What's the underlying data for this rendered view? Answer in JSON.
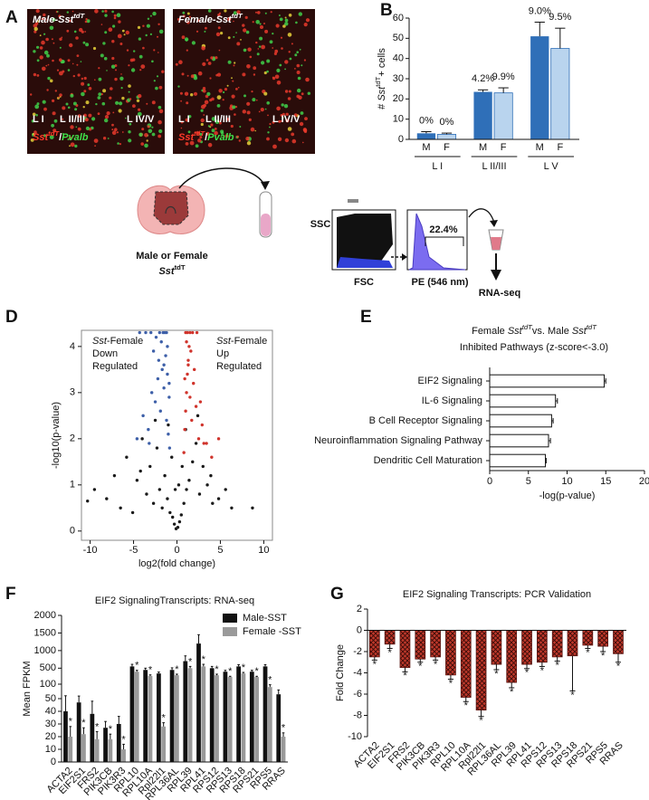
{
  "panel_a": {
    "letter": "A",
    "images": [
      {
        "title": [
          {
            "text": "Male-Sst",
            "style": "italic"
          },
          {
            "text": "tdT",
            "style": "italic-sup"
          }
        ],
        "layers": [
          "L I",
          "L II/III",
          "L IV/V"
        ],
        "stain": [
          {
            "text": "Sst",
            "style": "italic",
            "color": "#ff3a2a"
          },
          {
            "text": "tdT",
            "style": "italic-sup",
            "color": "#ff3a2a"
          },
          {
            "text": "/",
            "color": "#ffffff"
          },
          {
            "text": "Pvalb",
            "style": "italic",
            "color": "#3fe14a"
          }
        ]
      },
      {
        "title": [
          {
            "text": "Female-Sst",
            "style": "italic"
          },
          {
            "text": "tdT",
            "style": "italic-sup"
          }
        ],
        "layers": [
          "L I",
          "L II/III",
          "L IV/V"
        ],
        "stain": [
          {
            "text": "Sst",
            "style": "italic",
            "color": "#ff3a2a"
          },
          {
            "text": "tdT",
            "style": "italic-sup",
            "color": "#ff3a2a"
          },
          {
            "text": "/",
            "color": "#ffffff"
          },
          {
            "text": "Pvalb",
            "style": "italic",
            "color": "#3fe14a"
          }
        ]
      }
    ]
  },
  "panel_c": {
    "letter": "C",
    "animal": "Male or Female",
    "genotype": [
      {
        "text": "Sst",
        "style": "italic"
      },
      {
        "text": "tdT",
        "style": "sup"
      }
    ],
    "y_axis": "SSC",
    "x_axis": "FSC",
    "gate": "22.4%",
    "channel": "PE (546 nm)",
    "output": "RNA-seq"
  },
  "chart_data": [
    {
      "letter": "B",
      "type": "bar",
      "ylabel": [
        {
          "text": "# "
        },
        {
          "text": "Sst",
          "style": "italic"
        },
        {
          "text": "tdT",
          "style": "sup"
        },
        {
          "text": "+ cells"
        }
      ],
      "categories": [
        "L I",
        "L II/III",
        "L V"
      ],
      "series": [
        {
          "name": "M",
          "color": "#2f6fb8",
          "values": [
            3,
            23.5,
            51
          ],
          "errors": [
            0.8,
            1,
            7
          ],
          "annotations": [
            "0%",
            "4.2%",
            "9.0%"
          ]
        },
        {
          "name": "F",
          "color": "#b9d4ee",
          "values": [
            2.5,
            23,
            45
          ],
          "errors": [
            0.6,
            2.5,
            10
          ],
          "annotations": [
            "0%",
            "9.9%",
            "9.5%"
          ]
        }
      ],
      "ylim": [
        0,
        60
      ],
      "yticks": [
        0,
        10,
        20,
        30,
        40,
        50,
        60
      ],
      "legend": "under-bars"
    },
    {
      "letter": "D",
      "type": "scatter",
      "xlabel": "log2(fold change)",
      "ylabel": "-log10(p-value)",
      "series": [
        {
          "color": "#1a1a1a",
          "x": [
            -9.5,
            -8.1,
            -7.2,
            -6.5,
            -5.8,
            -5.1,
            -4.6,
            -4.0,
            -3.5,
            -3.1,
            -2.7,
            -2.3,
            -2.0,
            -1.7,
            -1.4,
            -1.1,
            -0.8,
            -0.5,
            -0.3,
            -0.1,
            0.1,
            0.3,
            0.5,
            0.8,
            1.1,
            1.4,
            1.8,
            2.2,
            2.6,
            3.0,
            3.5,
            4.1,
            4.8,
            5.6,
            6.3,
            -0.6,
            0.6,
            -0.2,
            0.2,
            -1.0,
            1.0,
            -2.5,
            2.4,
            -4.2,
            3.9,
            -10.3,
            8.7
          ],
          "y": [
            0.9,
            0.7,
            1.2,
            0.5,
            1.6,
            0.4,
            1.1,
            2.0,
            0.8,
            1.4,
            0.6,
            1.8,
            0.9,
            0.5,
            1.2,
            0.7,
            0.4,
            0.3,
            0.15,
            0.05,
            0.08,
            0.2,
            0.35,
            0.6,
            0.9,
            1.1,
            1.5,
            1.9,
            0.8,
            1.4,
            1.0,
            0.6,
            0.7,
            0.9,
            0.5,
            1.6,
            1.4,
            0.9,
            1.0,
            2.3,
            2.2,
            2.4,
            2.5,
            1.3,
            1.2,
            0.65,
            0.5
          ]
        },
        {
          "color": "#3d5fa8",
          "x": [
            -4.6,
            -3.9,
            -3.3,
            -2.9,
            -2.5,
            -2.2,
            -1.9,
            -1.7,
            -1.5,
            -1.3,
            -1.2,
            -1.1,
            -1.0,
            -0.9,
            -0.85,
            -2.0,
            -1.6,
            -1.4,
            -1.2,
            -3.0,
            -2.4,
            -1.8,
            -4.3,
            -3.6,
            -2.7,
            -2.1,
            -1.5,
            -1.1,
            -0.9,
            -3.2
          ],
          "y": [
            2.0,
            2.5,
            2.2,
            3.0,
            2.8,
            3.3,
            2.6,
            3.5,
            3.1,
            3.8,
            2.4,
            3.4,
            2.1,
            2.9,
            1.8,
            4.3,
            4.3,
            4.3,
            4.3,
            4.3,
            4.2,
            4.1,
            4.3,
            4.3,
            3.9,
            3.7,
            3.6,
            4.0,
            3.2,
            1.9
          ]
        },
        {
          "color": "#d0342c",
          "x": [
            0.8,
            0.9,
            1.0,
            1.1,
            1.2,
            1.3,
            1.5,
            1.7,
            1.9,
            2.2,
            2.5,
            2.9,
            3.4,
            4.0,
            4.8,
            1.0,
            1.2,
            1.5,
            1.8,
            2.3,
            1.1,
            1.4,
            1.6,
            2.0,
            0.9,
            2.7,
            3.1,
            1.3
          ],
          "y": [
            1.7,
            2.2,
            2.6,
            3.0,
            3.4,
            3.7,
            2.9,
            2.4,
            3.2,
            2.7,
            2.0,
            2.3,
            1.9,
            1.6,
            2.0,
            4.3,
            4.3,
            4.3,
            4.3,
            4.3,
            4.1,
            4.0,
            3.9,
            3.5,
            3.3,
            2.8,
            1.9,
            3.6
          ]
        }
      ],
      "annotations": [
        {
          "color": "#3d5fa8",
          "lines": [
            [
              {
                "text": "Sst",
                "style": "italic"
              },
              {
                "text": "-Female"
              }
            ],
            [
              {
                "text": "Down"
              }
            ],
            [
              {
                "text": "Regulated"
              }
            ]
          ]
        },
        {
          "color": "#c9302c",
          "lines": [
            [
              {
                "text": "Sst",
                "style": "italic"
              },
              {
                "text": "-Female"
              }
            ],
            [
              {
                "text": "Up"
              }
            ],
            [
              {
                "text": "Regulated"
              }
            ]
          ]
        }
      ],
      "xlim": [
        -11,
        11
      ],
      "xticks": [
        -10,
        -5,
        0,
        5,
        10
      ],
      "ylim": [
        -0.2,
        4.35
      ],
      "yticks": [
        0,
        1,
        2,
        3,
        4
      ]
    },
    {
      "letter": "E",
      "type": "barh",
      "title": [
        [
          {
            "text": "Female "
          },
          {
            "text": "Sst",
            "style": "italic"
          },
          {
            "text": "tdT",
            "style": "italic-sup"
          },
          {
            "text": "vs. Male "
          },
          {
            "text": "Sst",
            "style": "italic"
          },
          {
            "text": "tdT",
            "style": "italic-sup"
          }
        ],
        [
          {
            "text": "Inhibited Pathways (z-score<-3.0)"
          }
        ]
      ],
      "xlabel": "-log(p-value)",
      "categories": [
        "EIF2 Signaling",
        "IL-6 Signaling",
        "B Cell Receptor Signaling",
        "Neuroinflammation Signaling Pathway",
        "Dendritic Cell Maturation"
      ],
      "values": [
        14.8,
        8.5,
        8.0,
        7.6,
        7.2
      ],
      "errors": [
        0.2,
        0.25,
        0.2,
        0.25,
        0.1
      ],
      "color": "#ffffff",
      "label_colors": [
        "#c0392b",
        "#222222",
        "#222222",
        "#222222",
        "#222222"
      ],
      "xlim": [
        0,
        20
      ],
      "xticks": [
        0,
        5,
        10,
        15,
        20
      ]
    },
    {
      "letter": "F",
      "type": "bar",
      "title": "EIF2 SignalingTranscripts: RNA-seq",
      "ylabel": "Mean FPKM",
      "categories": [
        "ACTA2",
        "EIF2S1",
        "FRS2",
        "PIK3CB",
        "PIK3R3",
        "RPL10",
        "RPL10A",
        "Rpl22l1",
        "RPL36AL",
        "RPL39",
        "RPL41",
        "RPS12",
        "RPS13",
        "RPS18",
        "RPS21",
        "RPS5",
        "RRAS"
      ],
      "series": [
        {
          "name": "Male-SST",
          "color": "#111111",
          "values": [
            40,
            47,
            38,
            27,
            30,
            550,
            450,
            350,
            450,
            700,
            1200,
            500,
            400,
            550,
            400,
            550,
            65
          ],
          "errors": [
            20,
            12,
            10,
            5,
            6,
            60,
            50,
            40,
            60,
            150,
            250,
            50,
            40,
            50,
            40,
            50,
            15
          ]
        },
        {
          "name": "Female -SST",
          "color": "#9a9a9a",
          "values": [
            20,
            22,
            18,
            18,
            10,
            400,
            280,
            28,
            300,
            500,
            550,
            300,
            250,
            350,
            250,
            90,
            20
          ],
          "errors": [
            8,
            5,
            6,
            4,
            4,
            40,
            30,
            3,
            30,
            50,
            60,
            30,
            20,
            30,
            20,
            8,
            3
          ],
          "annotations": [
            "*",
            "*",
            "*",
            "*",
            "*",
            "*",
            "*",
            "*",
            "*",
            "*",
            "*",
            "*",
            "*",
            "*",
            "*",
            "*",
            "*"
          ]
        }
      ],
      "y_segments": [
        [
          0,
          50
        ],
        [
          50,
          100
        ],
        [
          200,
          2000
        ]
      ],
      "ylim": [
        0,
        2000
      ],
      "yticks": [
        0,
        10,
        20,
        30,
        40,
        50,
        100,
        500,
        1000,
        1500,
        2000
      ],
      "legend": "upper-right"
    },
    {
      "letter": "G",
      "type": "bar",
      "title": "EIF2 Signaling Transcripts: PCR Validation",
      "ylabel": "Fold Change",
      "categories": [
        "ACTA2",
        "EIF2S1",
        "FRS2",
        "PIK3CB",
        "PIK3R3",
        "RPL10",
        "RPL10A",
        "Rpl22l1",
        "RPL36AL",
        "RPL39",
        "RPL41",
        "RPS12",
        "RPS13",
        "RPS18",
        "RPS21",
        "RPS5",
        "RRAS"
      ],
      "series": [
        {
          "color": "#c0392b",
          "pattern": "crosshatch",
          "values": [
            -2.5,
            -1.3,
            -3.5,
            -2.7,
            -2.5,
            -4.2,
            -6.3,
            -7.5,
            -3.2,
            -4.9,
            -3.2,
            -3.0,
            -2.5,
            -2.4,
            -1.4,
            -1.5,
            -2.2
          ],
          "errors": [
            0.3,
            0.4,
            0.4,
            0.3,
            0.3,
            0.4,
            0.4,
            0.6,
            0.5,
            0.5,
            0.4,
            0.4,
            0.4,
            3.3,
            0.3,
            0.5,
            0.8
          ],
          "annotations": [
            "*",
            "*",
            "*",
            "*",
            "*",
            "*",
            "*",
            "*",
            "*",
            "*",
            "*",
            "*",
            "*",
            "*",
            "*",
            "*",
            "*"
          ]
        }
      ],
      "ylim": [
        -10,
        2
      ],
      "yticks": [
        -10,
        -8,
        -6,
        -4,
        -2,
        0,
        2
      ]
    }
  ]
}
